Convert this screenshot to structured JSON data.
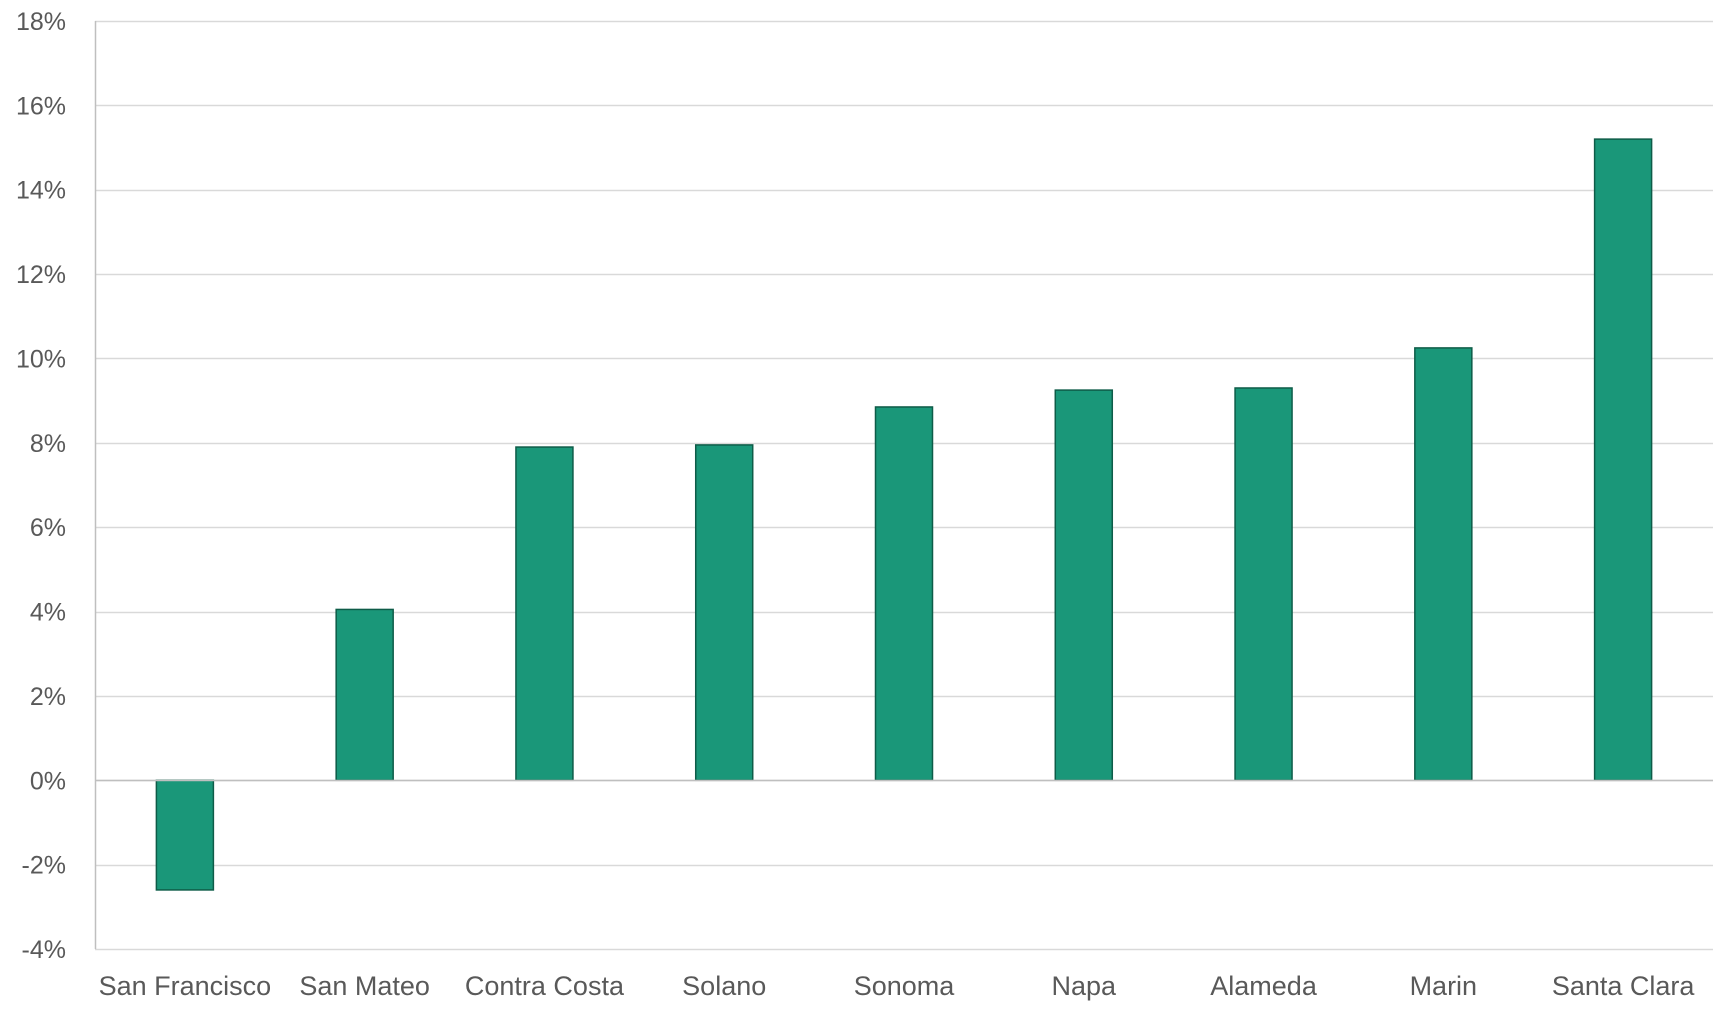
{
  "chart_data": {
    "type": "bar",
    "title": "",
    "xlabel": "",
    "ylabel": "",
    "categories": [
      "San Francisco",
      "San Mateo",
      "Contra Costa",
      "Solano",
      "Sonoma",
      "Napa",
      "Alameda",
      "Marin",
      "Santa Clara"
    ],
    "values": [
      -2.6,
      4.05,
      7.9,
      7.95,
      8.85,
      9.25,
      9.3,
      10.25,
      15.2
    ],
    "ylim": [
      -4,
      18
    ],
    "yticks": [
      -4,
      -2,
      0,
      2,
      4,
      6,
      8,
      10,
      12,
      14,
      16,
      18
    ],
    "ytick_labels": [
      "-4%",
      "-2%",
      "0%",
      "2%",
      "4%",
      "6%",
      "8%",
      "10%",
      "12%",
      "14%",
      "16%",
      "18%"
    ],
    "grid": true,
    "legend": "none",
    "colors": {
      "bar_fill": "#1a9779",
      "bar_stroke": "#0e5c48",
      "grid": "#d9d9d9",
      "axis": "#bfbfbf",
      "text": "#595959"
    }
  }
}
